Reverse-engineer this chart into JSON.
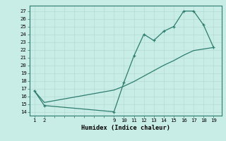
{
  "line1_x": [
    1,
    2,
    9,
    10,
    11,
    12,
    13,
    14,
    15,
    16,
    17,
    18,
    19
  ],
  "line1_y": [
    16.7,
    14.8,
    14.0,
    17.8,
    21.2,
    24.0,
    23.2,
    24.4,
    25.0,
    27.0,
    27.0,
    25.2,
    22.3
  ],
  "line2_x": [
    1,
    2,
    9,
    10,
    11,
    12,
    13,
    14,
    15,
    16,
    17,
    18,
    19
  ],
  "line2_y": [
    16.7,
    15.2,
    16.8,
    17.3,
    17.9,
    18.6,
    19.3,
    20.0,
    20.6,
    21.3,
    21.9,
    22.1,
    22.3
  ],
  "line_color": "#2e7d6e",
  "bg_color": "#c8ece6",
  "grid_color": "#b0d8d0",
  "ylabel_ticks": [
    14,
    15,
    16,
    17,
    18,
    19,
    20,
    21,
    22,
    23,
    24,
    25,
    26,
    27
  ],
  "xlabel_ticks": [
    1,
    2,
    9,
    10,
    11,
    12,
    13,
    14,
    15,
    16,
    17,
    18,
    19
  ],
  "xlabel": "Humidex (Indice chaleur)",
  "ylim": [
    13.5,
    27.7
  ],
  "xlim": [
    0.5,
    19.8
  ]
}
